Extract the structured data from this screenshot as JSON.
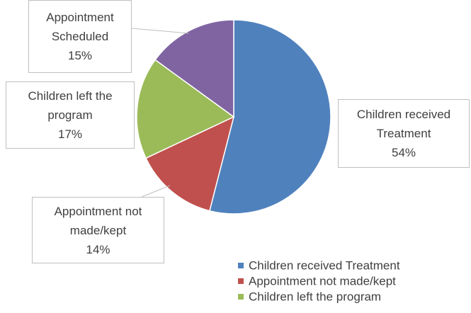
{
  "chart_data": {
    "type": "pie",
    "categories": [
      "Children received Treatment",
      "Appointment not made/kept",
      "Children left the program",
      "Appointment Scheduled"
    ],
    "values": [
      54,
      14,
      17,
      15
    ],
    "value_labels": [
      "54%",
      "14%",
      "17%",
      "15%"
    ],
    "colors": [
      "#4f81bd",
      "#c0504d",
      "#9bbb59",
      "#8064a2"
    ],
    "legend": "bottom-right"
  }
}
